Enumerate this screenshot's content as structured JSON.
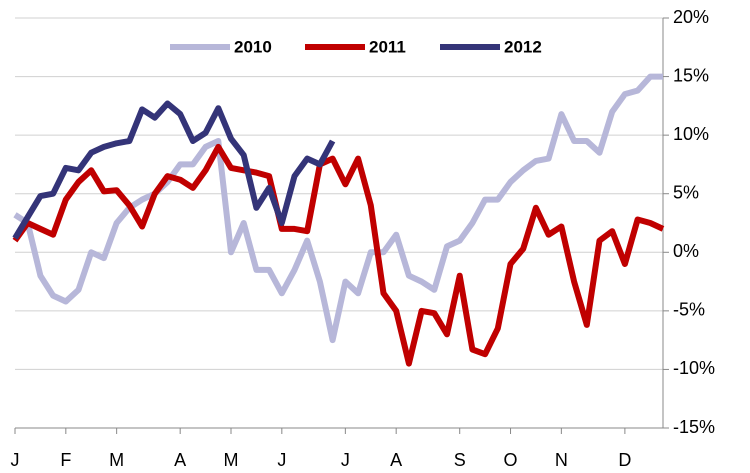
{
  "chart_data": {
    "type": "line",
    "categories": [
      "J",
      null,
      null,
      null,
      "F",
      null,
      null,
      null,
      "M",
      null,
      null,
      null,
      null,
      "A",
      null,
      null,
      null,
      "M",
      null,
      null,
      null,
      "J",
      null,
      null,
      null,
      null,
      "J",
      null,
      null,
      null,
      "A",
      null,
      null,
      null,
      null,
      "S",
      null,
      null,
      null,
      "O",
      null,
      null,
      null,
      "N",
      null,
      null,
      null,
      null,
      "D",
      null,
      null,
      null
    ],
    "series": [
      {
        "name": "2010",
        "color": "#b7b7d9",
        "values": [
          3.2,
          2.5,
          -2,
          -3.7,
          -4.2,
          -3.2,
          0,
          -0.5,
          2.5,
          3.8,
          4.5,
          5,
          6,
          7.5,
          7.5,
          9,
          9.5,
          0,
          2.5,
          -1.5,
          -1.5,
          -3.5,
          -1.5,
          1,
          -2.5,
          -7.5,
          -2.5,
          -3.5,
          0,
          0,
          1.5,
          -2,
          -2.5,
          -3.2,
          0.5,
          1,
          2.5,
          4.5,
          4.5,
          6,
          7,
          7.8,
          8,
          11.8,
          9.5,
          9.5,
          8.5,
          12,
          13.5,
          13.8,
          15,
          15
        ]
      },
      {
        "name": "2011",
        "color": "#c00000",
        "values": [
          1,
          2.5,
          2,
          1.5,
          4.5,
          6,
          7,
          5.2,
          5.3,
          4,
          2.2,
          5,
          6.5,
          6.2,
          5.5,
          7,
          9,
          7.2,
          7,
          6.8,
          6.5,
          2,
          2,
          1.8,
          7.5,
          8,
          5.8,
          8,
          4,
          -3.5,
          -5,
          -9.5,
          -5,
          -5.2,
          -7,
          -2,
          -8.3,
          -8.7,
          -6.5,
          -1,
          0.3,
          3.8,
          1.5,
          2.2,
          -2.5,
          -6.2,
          1,
          1.8,
          -1,
          2.8,
          2.5,
          2
        ]
      },
      {
        "name": "2012",
        "color": "#343478",
        "values": [
          1.2,
          3,
          4.8,
          5,
          7.2,
          7,
          8.5,
          9,
          9.3,
          9.5,
          12.2,
          11.5,
          12.7,
          11.8,
          9.5,
          10.2,
          12.3,
          9.7,
          8.3,
          3.8,
          5.5,
          2.5,
          6.5,
          8,
          7.5,
          9.5,
          null,
          null,
          null,
          null,
          null,
          null,
          null,
          null,
          null,
          null,
          null,
          null,
          null,
          null,
          null,
          null,
          null,
          null,
          null,
          null,
          null,
          null,
          null,
          null,
          null,
          null
        ]
      }
    ],
    "ylim": [
      -15,
      20
    ],
    "yticks": [
      {
        "value": -15,
        "label": "-15%"
      },
      {
        "value": -10,
        "label": "-10%"
      },
      {
        "value": -5,
        "label": "-5%"
      },
      {
        "value": 0,
        "label": "0%"
      },
      {
        "value": 5,
        "label": "5%"
      },
      {
        "value": 10,
        "label": "10%"
      },
      {
        "value": 15,
        "label": "15%"
      },
      {
        "value": 20,
        "label": "20%"
      }
    ],
    "grid": true
  }
}
